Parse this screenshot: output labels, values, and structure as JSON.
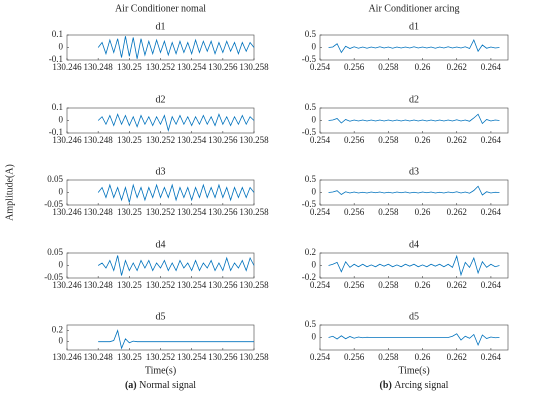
{
  "chart_data": [
    {
      "type": "line",
      "suptitle": "Air Conditioner nomal",
      "title": "d1",
      "color": "#0072bd",
      "xlim": [
        130.246,
        130.258
      ],
      "xticks": [
        130.246,
        130.248,
        130.25,
        130.252,
        130.254,
        130.256,
        130.258
      ],
      "ylim": [
        -0.1,
        0.1
      ],
      "yticks": [
        -0.1,
        0,
        0.1
      ],
      "x": [
        130.248,
        130.24825,
        130.2485,
        130.24875,
        130.249,
        130.24925,
        130.2495,
        130.24975,
        130.25,
        130.25025,
        130.2505,
        130.25075,
        130.251,
        130.25125,
        130.2515,
        130.25175,
        130.252,
        130.25225,
        130.2525,
        130.25275,
        130.253,
        130.25325,
        130.2535,
        130.25375,
        130.254,
        130.25425,
        130.2545,
        130.25475,
        130.255,
        130.25525,
        130.2555,
        130.25575,
        130.256,
        130.25625,
        130.2565,
        130.25675,
        130.257,
        130.25725,
        130.2575,
        130.25775,
        130.258
      ],
      "values": [
        0,
        0.04,
        -0.05,
        0.06,
        -0.04,
        0.07,
        -0.08,
        0.09,
        -0.07,
        0.08,
        -0.09,
        0.07,
        -0.06,
        0.05,
        -0.05,
        0.06,
        -0.04,
        0.05,
        -0.06,
        0.04,
        -0.05,
        0.05,
        -0.04,
        0.04,
        -0.05,
        0.06,
        -0.04,
        0.05,
        -0.03,
        0.05,
        -0.05,
        0.04,
        -0.04,
        0.05,
        -0.03,
        0.04,
        -0.05,
        0.04,
        -0.03,
        0.04,
        0
      ]
    },
    {
      "type": "line",
      "title": "d2",
      "color": "#0072bd",
      "xlim": [
        130.246,
        130.258
      ],
      "xticks": [
        130.246,
        130.248,
        130.25,
        130.252,
        130.254,
        130.256,
        130.258
      ],
      "ylim": [
        -0.1,
        0.1
      ],
      "yticks": [
        -0.1,
        0,
        0.1
      ],
      "x": [
        130.248,
        130.24825,
        130.2485,
        130.24875,
        130.249,
        130.24925,
        130.2495,
        130.24975,
        130.25,
        130.25025,
        130.2505,
        130.25075,
        130.251,
        130.25125,
        130.2515,
        130.25175,
        130.252,
        130.25225,
        130.2525,
        130.25275,
        130.253,
        130.25325,
        130.2535,
        130.25375,
        130.254,
        130.25425,
        130.2545,
        130.25475,
        130.255,
        130.25525,
        130.2555,
        130.25575,
        130.256,
        130.25625,
        130.2565,
        130.25675,
        130.257,
        130.25725,
        130.2575,
        130.25775,
        130.258
      ],
      "values": [
        0,
        0.03,
        -0.03,
        0.04,
        -0.04,
        0.05,
        -0.03,
        0.04,
        -0.04,
        0.03,
        -0.05,
        0.04,
        -0.03,
        0.03,
        -0.04,
        0.03,
        -0.03,
        0.04,
        -0.08,
        0.03,
        -0.03,
        0.04,
        -0.03,
        0.03,
        -0.04,
        0.03,
        -0.03,
        0.04,
        -0.03,
        0.03,
        -0.04,
        0.05,
        -0.03,
        0.03,
        -0.04,
        0.03,
        -0.03,
        0.04,
        -0.03,
        0.03,
        0
      ]
    },
    {
      "type": "line",
      "title": "d3",
      "ylabel": "Amplitude(A)",
      "color": "#0072bd",
      "xlim": [
        130.246,
        130.258
      ],
      "xticks": [
        130.246,
        130.248,
        130.25,
        130.252,
        130.254,
        130.256,
        130.258
      ],
      "ylim": [
        -0.05,
        0.05
      ],
      "yticks": [
        -0.05,
        0,
        0.05
      ],
      "x": [
        130.248,
        130.24825,
        130.2485,
        130.24875,
        130.249,
        130.24925,
        130.2495,
        130.24975,
        130.25,
        130.25025,
        130.2505,
        130.25075,
        130.251,
        130.25125,
        130.2515,
        130.25175,
        130.252,
        130.25225,
        130.2525,
        130.25275,
        130.253,
        130.25325,
        130.2535,
        130.25375,
        130.254,
        130.25425,
        130.2545,
        130.25475,
        130.255,
        130.25525,
        130.2555,
        130.25575,
        130.256,
        130.25625,
        130.2565,
        130.25675,
        130.257,
        130.25725,
        130.2575,
        130.25775,
        130.258
      ],
      "values": [
        0,
        0.02,
        -0.02,
        0.03,
        -0.02,
        0.02,
        -0.03,
        0.02,
        -0.04,
        0.03,
        -0.02,
        0.02,
        -0.03,
        0.02,
        -0.02,
        0.03,
        -0.02,
        0.02,
        -0.02,
        0.03,
        -0.03,
        0.02,
        -0.02,
        0.02,
        -0.03,
        0.02,
        -0.02,
        0.03,
        -0.02,
        0.02,
        -0.02,
        0.03,
        -0.02,
        0.02,
        -0.03,
        0.02,
        -0.02,
        0.02,
        -0.02,
        0.02,
        0
      ]
    },
    {
      "type": "line",
      "title": "d4",
      "color": "#0072bd",
      "xlim": [
        130.246,
        130.258
      ],
      "xticks": [
        130.246,
        130.248,
        130.25,
        130.252,
        130.254,
        130.256,
        130.258
      ],
      "ylim": [
        -0.05,
        0.05
      ],
      "yticks": [
        -0.05,
        0,
        0.05
      ],
      "x": [
        130.248,
        130.24825,
        130.2485,
        130.24875,
        130.249,
        130.24925,
        130.2495,
        130.24975,
        130.25,
        130.25025,
        130.2505,
        130.25075,
        130.251,
        130.25125,
        130.2515,
        130.25175,
        130.252,
        130.25225,
        130.2525,
        130.25275,
        130.253,
        130.25325,
        130.2535,
        130.25375,
        130.254,
        130.25425,
        130.2545,
        130.25475,
        130.255,
        130.25525,
        130.2555,
        130.25575,
        130.256,
        130.25625,
        130.2565,
        130.25675,
        130.257,
        130.25725,
        130.2575,
        130.25775,
        130.258
      ],
      "values": [
        0,
        0.01,
        -0.01,
        0.02,
        -0.02,
        0.04,
        -0.04,
        0.02,
        -0.02,
        0.01,
        -0.02,
        0.02,
        -0.01,
        0.02,
        -0.02,
        0.01,
        -0.01,
        0.02,
        -0.02,
        0.01,
        -0.02,
        0.02,
        -0.01,
        0.01,
        -0.02,
        0.02,
        -0.02,
        0.01,
        -0.01,
        0.02,
        -0.02,
        0.01,
        -0.02,
        0.03,
        -0.02,
        0.01,
        -0.01,
        0.02,
        -0.02,
        0.03,
        0
      ]
    },
    {
      "type": "line",
      "title": "d5",
      "xlabel": "Time(s)",
      "caption_label": "(a)",
      "caption": "Normal signal",
      "color": "#0072bd",
      "xlim": [
        130.246,
        130.258
      ],
      "xticks": [
        130.246,
        130.248,
        130.25,
        130.252,
        130.254,
        130.256,
        130.258
      ],
      "ylim": [
        -0.15,
        0.3
      ],
      "yticks": [
        0,
        0.2
      ],
      "x": [
        130.248,
        130.24825,
        130.2485,
        130.24875,
        130.249,
        130.24925,
        130.2495,
        130.24975,
        130.25,
        130.25025,
        130.2505,
        130.25075,
        130.251,
        130.25125,
        130.2515,
        130.25175,
        130.252,
        130.25225,
        130.2525,
        130.25275,
        130.253,
        130.25325,
        130.2535,
        130.25375,
        130.254,
        130.25425,
        130.2545,
        130.25475,
        130.255,
        130.25525,
        130.2555,
        130.25575,
        130.256,
        130.25625,
        130.2565,
        130.25675,
        130.257,
        130.25725,
        130.2575,
        130.25775,
        130.258
      ],
      "values": [
        0,
        0,
        0,
        0,
        0.02,
        0.2,
        -0.12,
        0.05,
        -0.02,
        0.01,
        0,
        0,
        0,
        0,
        0,
        0,
        0,
        0,
        0,
        0,
        0,
        0,
        0,
        0,
        0,
        0,
        0,
        0,
        0,
        0,
        0,
        0,
        0,
        0,
        0,
        0,
        0,
        0,
        0,
        0,
        0
      ]
    },
    {
      "type": "line",
      "suptitle": "Air Conditioner arcing",
      "title": "d1",
      "color": "#0072bd",
      "xlim": [
        0.254,
        0.265
      ],
      "xticks": [
        0.254,
        0.256,
        0.258,
        0.26,
        0.262,
        0.264
      ],
      "ylim": [
        -0.5,
        0.5
      ],
      "yticks": [
        -0.5,
        0,
        0.5
      ],
      "x": [
        0.2545,
        0.25475,
        0.255,
        0.25525,
        0.2555,
        0.25575,
        0.256,
        0.25625,
        0.2565,
        0.25675,
        0.257,
        0.25725,
        0.2575,
        0.25775,
        0.258,
        0.25825,
        0.2585,
        0.25875,
        0.259,
        0.25925,
        0.2595,
        0.25975,
        0.26,
        0.26025,
        0.2605,
        0.26075,
        0.261,
        0.26125,
        0.2615,
        0.26175,
        0.262,
        0.26225,
        0.2625,
        0.26275,
        0.263,
        0.26325,
        0.2635,
        0.26375,
        0.264,
        0.26425,
        0.2645
      ],
      "values": [
        0,
        0.02,
        0.15,
        -0.2,
        0.05,
        -0.04,
        0.03,
        -0.03,
        0.02,
        -0.03,
        0.02,
        -0.02,
        0.03,
        -0.02,
        0.02,
        -0.03,
        0.02,
        -0.02,
        0.02,
        -0.02,
        0.03,
        -0.02,
        0.02,
        -0.02,
        0.02,
        -0.03,
        0.02,
        -0.02,
        0.03,
        -0.02,
        0.02,
        -0.02,
        0.03,
        -0.04,
        0.3,
        -0.15,
        0.1,
        -0.03,
        0.02,
        -0.02,
        0
      ]
    },
    {
      "type": "line",
      "title": "d2",
      "color": "#0072bd",
      "xlim": [
        0.254,
        0.265
      ],
      "xticks": [
        0.254,
        0.256,
        0.258,
        0.26,
        0.262,
        0.264
      ],
      "ylim": [
        -0.5,
        0.5
      ],
      "yticks": [
        -0.5,
        0,
        0.5
      ],
      "x": [
        0.2545,
        0.25475,
        0.255,
        0.25525,
        0.2555,
        0.25575,
        0.256,
        0.25625,
        0.2565,
        0.25675,
        0.257,
        0.25725,
        0.2575,
        0.25775,
        0.258,
        0.25825,
        0.2585,
        0.25875,
        0.259,
        0.25925,
        0.2595,
        0.25975,
        0.26,
        0.26025,
        0.2605,
        0.26075,
        0.261,
        0.26125,
        0.2615,
        0.26175,
        0.262,
        0.26225,
        0.2625,
        0.26275,
        0.263,
        0.26325,
        0.2635,
        0.26375,
        0.264,
        0.26425,
        0.2645
      ],
      "values": [
        0,
        0.02,
        0.08,
        -0.1,
        0.04,
        -0.03,
        0.02,
        -0.02,
        0.02,
        -0.02,
        0.02,
        -0.02,
        0.02,
        -0.02,
        0.02,
        -0.02,
        0.02,
        -0.02,
        0.02,
        -0.02,
        0.02,
        -0.02,
        0.02,
        -0.02,
        0.02,
        -0.02,
        0.02,
        -0.02,
        0.02,
        -0.02,
        0.03,
        -0.02,
        0.02,
        -0.03,
        0.1,
        0.25,
        -0.12,
        0.04,
        -0.02,
        0.02,
        0
      ]
    },
    {
      "type": "line",
      "title": "d3",
      "color": "#0072bd",
      "xlim": [
        0.254,
        0.265
      ],
      "xticks": [
        0.254,
        0.256,
        0.258,
        0.26,
        0.262,
        0.264
      ],
      "ylim": [
        -0.5,
        0.5
      ],
      "yticks": [
        -0.5,
        0,
        0.5
      ],
      "x": [
        0.2545,
        0.25475,
        0.255,
        0.25525,
        0.2555,
        0.25575,
        0.256,
        0.25625,
        0.2565,
        0.25675,
        0.257,
        0.25725,
        0.2575,
        0.25775,
        0.258,
        0.25825,
        0.2585,
        0.25875,
        0.259,
        0.25925,
        0.2595,
        0.25975,
        0.26,
        0.26025,
        0.2605,
        0.26075,
        0.261,
        0.26125,
        0.2615,
        0.26175,
        0.262,
        0.26225,
        0.2625,
        0.26275,
        0.263,
        0.26325,
        0.2635,
        0.26375,
        0.264,
        0.26425,
        0.2645
      ],
      "values": [
        0,
        0.02,
        0.07,
        -0.08,
        0.03,
        -0.02,
        0.02,
        -0.02,
        0.01,
        -0.02,
        0.02,
        -0.01,
        0.02,
        -0.02,
        0.01,
        -0.02,
        0.02,
        -0.01,
        0.02,
        -0.02,
        0.01,
        -0.02,
        0.02,
        -0.01,
        0.02,
        -0.02,
        0.01,
        -0.02,
        0.02,
        -0.01,
        0.03,
        -0.02,
        0.02,
        -0.03,
        0.08,
        0.25,
        -0.1,
        0.03,
        -0.02,
        0.01,
        0
      ]
    },
    {
      "type": "line",
      "title": "d4",
      "color": "#0072bd",
      "xlim": [
        0.254,
        0.265
      ],
      "xticks": [
        0.254,
        0.256,
        0.258,
        0.26,
        0.262,
        0.264
      ],
      "ylim": [
        -0.2,
        0.2
      ],
      "yticks": [
        -0.2,
        0,
        0.2
      ],
      "x": [
        0.2545,
        0.25475,
        0.255,
        0.25525,
        0.2555,
        0.25575,
        0.256,
        0.25625,
        0.2565,
        0.25675,
        0.257,
        0.25725,
        0.2575,
        0.25775,
        0.258,
        0.25825,
        0.2585,
        0.25875,
        0.259,
        0.25925,
        0.2595,
        0.25975,
        0.26,
        0.26025,
        0.2605,
        0.26075,
        0.261,
        0.26125,
        0.2615,
        0.26175,
        0.262,
        0.26225,
        0.2625,
        0.26275,
        0.263,
        0.26325,
        0.2635,
        0.26375,
        0.264,
        0.26425,
        0.2645
      ],
      "values": [
        0,
        0.02,
        0.05,
        -0.1,
        0.06,
        -0.03,
        0.02,
        -0.02,
        0.02,
        -0.02,
        0.01,
        -0.02,
        0.02,
        -0.01,
        0.02,
        -0.02,
        0.01,
        -0.02,
        0.02,
        -0.01,
        0.02,
        -0.02,
        0.01,
        -0.02,
        0.02,
        -0.01,
        0.02,
        -0.02,
        0.02,
        -0.03,
        0.15,
        -0.15,
        0.05,
        -0.03,
        0.12,
        -0.12,
        0.06,
        -0.03,
        0.02,
        -0.02,
        0
      ]
    },
    {
      "type": "line",
      "title": "d5",
      "xlabel": "Time(s)",
      "caption_label": "(b)",
      "caption": "Arcing signal",
      "color": "#0072bd",
      "xlim": [
        0.254,
        0.265
      ],
      "xticks": [
        0.254,
        0.256,
        0.258,
        0.26,
        0.262,
        0.264
      ],
      "ylim": [
        -0.5,
        0.5
      ],
      "yticks": [
        0,
        0.5
      ],
      "x": [
        0.2545,
        0.25475,
        0.255,
        0.25525,
        0.2555,
        0.25575,
        0.256,
        0.25625,
        0.2565,
        0.25675,
        0.257,
        0.25725,
        0.2575,
        0.25775,
        0.258,
        0.25825,
        0.2585,
        0.25875,
        0.259,
        0.25925,
        0.2595,
        0.25975,
        0.26,
        0.26025,
        0.2605,
        0.26075,
        0.261,
        0.26125,
        0.2615,
        0.26175,
        0.262,
        0.26225,
        0.2625,
        0.26275,
        0.263,
        0.26325,
        0.2635,
        0.26375,
        0.264,
        0.26425,
        0.2645
      ],
      "values": [
        0,
        0.05,
        -0.06,
        0.07,
        -0.05,
        0.04,
        -0.03,
        0.02,
        -0.01,
        0.01,
        0,
        0,
        0,
        0,
        0,
        0,
        0,
        0,
        0,
        0,
        0,
        0,
        0,
        0,
        0,
        0,
        0,
        0,
        0,
        0.05,
        0.15,
        -0.1,
        0.05,
        -0.03,
        0.12,
        -0.3,
        0.1,
        -0.04,
        0.02,
        -0.01,
        0
      ]
    }
  ]
}
